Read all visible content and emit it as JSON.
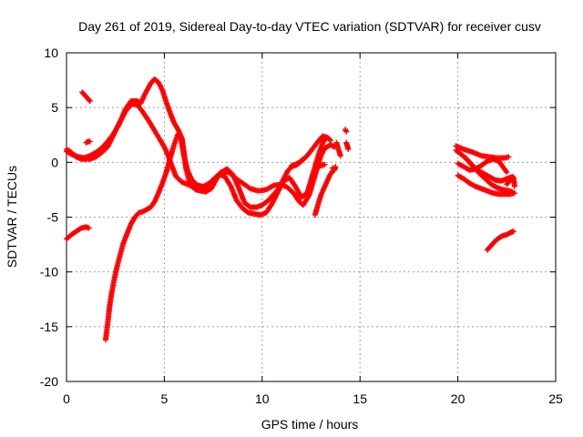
{
  "chart_data": {
    "type": "scatter",
    "title": "Day 261 of 2019, Sidereal Day-to-day VTEC variation (SDTVAR) for receiver cusv",
    "xlabel": "GPS time / hours",
    "ylabel": "SDTVAR / TECUs",
    "xlim": [
      0,
      25
    ],
    "ylim": [
      -20,
      10
    ],
    "xticks": [
      0,
      5,
      10,
      15,
      20,
      25
    ],
    "yticks": [
      -20,
      -15,
      -10,
      -5,
      0,
      5,
      10
    ],
    "grid": true,
    "marker": "+",
    "color": "#ff0000",
    "series": [
      {
        "points": [
          [
            0.0,
            -7.0
          ],
          [
            0.25,
            -6.6
          ],
          [
            0.5,
            -6.3
          ],
          [
            0.75,
            -6.0
          ],
          [
            1.0,
            -5.9
          ],
          [
            1.15,
            -6.0
          ]
        ]
      },
      {
        "points": [
          [
            0.0,
            1.2
          ],
          [
            0.25,
            0.9
          ],
          [
            0.5,
            0.5
          ],
          [
            0.75,
            0.3
          ],
          [
            1.0,
            0.3
          ],
          [
            1.2,
            0.3
          ],
          [
            1.5,
            0.5
          ],
          [
            1.8,
            0.9
          ],
          [
            2.1,
            1.4
          ],
          [
            2.4,
            2.5
          ],
          [
            2.7,
            3.6
          ],
          [
            3.0,
            4.6
          ],
          [
            3.3,
            5.3
          ],
          [
            3.6,
            5.3
          ],
          [
            3.9,
            4.6
          ],
          [
            4.2,
            3.8
          ],
          [
            4.5,
            2.9
          ],
          [
            4.8,
            2.0
          ],
          [
            5.0,
            1.4
          ],
          [
            5.2,
            0.6
          ],
          [
            5.4,
            -0.4
          ],
          [
            5.6,
            -1.3
          ],
          [
            5.9,
            -1.8
          ],
          [
            6.3,
            -2.1
          ],
          [
            6.7,
            -2.5
          ],
          [
            7.1,
            -2.7
          ],
          [
            7.4,
            -2.4
          ],
          [
            7.7,
            -1.4
          ],
          [
            8.0,
            -0.9
          ],
          [
            8.3,
            -0.9
          ],
          [
            8.6,
            -1.4
          ],
          [
            9.0,
            -1.9
          ],
          [
            9.4,
            -2.4
          ],
          [
            9.8,
            -2.6
          ],
          [
            10.2,
            -2.5
          ],
          [
            10.6,
            -2.1
          ],
          [
            11.0,
            -2.0
          ],
          [
            11.3,
            -2.3
          ],
          [
            11.6,
            -2.8
          ],
          [
            11.9,
            -3.6
          ],
          [
            12.1,
            -3.9
          ],
          [
            12.4,
            -3.0
          ],
          [
            12.6,
            -1.8
          ],
          [
            12.8,
            -0.6
          ],
          [
            13.0,
            0.6
          ],
          [
            13.2,
            1.3
          ],
          [
            13.5,
            1.6
          ],
          [
            13.7,
            1.4
          ]
        ]
      },
      {
        "points": [
          [
            2.0,
            -16.2
          ],
          [
            2.1,
            -14.8
          ],
          [
            2.2,
            -13.2
          ],
          [
            2.3,
            -12.0
          ],
          [
            2.45,
            -10.6
          ],
          [
            2.6,
            -9.4
          ],
          [
            2.75,
            -8.4
          ],
          [
            2.9,
            -7.4
          ],
          [
            3.1,
            -6.5
          ],
          [
            3.3,
            -5.6
          ],
          [
            3.5,
            -5.0
          ],
          [
            3.7,
            -4.6
          ],
          [
            3.9,
            -4.5
          ],
          [
            4.1,
            -4.3
          ],
          [
            4.3,
            -4.1
          ],
          [
            4.5,
            -3.6
          ],
          [
            4.7,
            -2.8
          ],
          [
            4.9,
            -1.9
          ],
          [
            5.1,
            -0.9
          ],
          [
            5.3,
            0.4
          ],
          [
            5.5,
            1.6
          ],
          [
            5.7,
            2.6
          ],
          [
            5.85,
            2.2
          ],
          [
            6.0,
            0.6
          ],
          [
            6.2,
            -0.8
          ],
          [
            6.4,
            -1.6
          ],
          [
            6.7,
            -2.1
          ],
          [
            7.0,
            -2.2
          ],
          [
            7.3,
            -1.9
          ],
          [
            7.6,
            -1.4
          ],
          [
            7.9,
            -0.9
          ],
          [
            8.2,
            -0.6
          ],
          [
            8.5,
            -1.1
          ],
          [
            8.8,
            -2.3
          ],
          [
            9.1,
            -3.7
          ],
          [
            9.4,
            -4.1
          ],
          [
            9.7,
            -4.1
          ],
          [
            10.0,
            -3.9
          ],
          [
            10.3,
            -3.5
          ],
          [
            10.6,
            -2.9
          ],
          [
            10.9,
            -2.3
          ],
          [
            11.1,
            -1.5
          ],
          [
            11.3,
            -0.8
          ],
          [
            11.5,
            -0.4
          ],
          [
            11.8,
            -0.2
          ],
          [
            12.0,
            0.1
          ],
          [
            12.3,
            0.6
          ],
          [
            12.6,
            1.3
          ],
          [
            12.9,
            2.0
          ],
          [
            13.1,
            2.4
          ],
          [
            13.4,
            2.2
          ]
        ]
      },
      {
        "points": [
          [
            0.0,
            1.0
          ],
          [
            0.3,
            0.7
          ],
          [
            0.6,
            0.5
          ],
          [
            0.9,
            0.4
          ],
          [
            1.2,
            0.6
          ],
          [
            1.5,
            0.9
          ],
          [
            1.8,
            1.3
          ],
          [
            2.1,
            1.9
          ],
          [
            2.4,
            2.6
          ],
          [
            2.7,
            3.5
          ],
          [
            3.0,
            4.8
          ],
          [
            3.3,
            5.6
          ],
          [
            3.6,
            5.6
          ],
          [
            3.8,
            5.4
          ],
          [
            4.0,
            6.2
          ],
          [
            4.3,
            7.2
          ],
          [
            4.5,
            7.6
          ],
          [
            4.7,
            7.3
          ],
          [
            4.9,
            6.6
          ],
          [
            5.1,
            5.5
          ],
          [
            5.3,
            4.5
          ],
          [
            5.5,
            3.6
          ],
          [
            5.7,
            3.0
          ],
          [
            5.9,
            2.2
          ],
          [
            6.0,
            1.0
          ],
          [
            6.1,
            -0.5
          ],
          [
            6.3,
            -1.9
          ],
          [
            6.6,
            -2.5
          ],
          [
            6.9,
            -2.6
          ],
          [
            7.2,
            -2.2
          ],
          [
            7.5,
            -1.6
          ],
          [
            7.8,
            -1.1
          ],
          [
            8.1,
            -1.3
          ],
          [
            8.4,
            -2.2
          ],
          [
            8.7,
            -3.5
          ],
          [
            9.0,
            -4.2
          ],
          [
            9.3,
            -4.6
          ],
          [
            9.6,
            -4.7
          ],
          [
            9.9,
            -4.8
          ],
          [
            10.2,
            -4.6
          ],
          [
            10.5,
            -3.8
          ],
          [
            10.8,
            -2.7
          ],
          [
            11.1,
            -1.7
          ],
          [
            11.4,
            -1.4
          ],
          [
            11.7,
            -2.2
          ],
          [
            12.0,
            -3.2
          ],
          [
            12.3,
            -2.8
          ],
          [
            12.5,
            -1.6
          ],
          [
            12.7,
            -0.4
          ],
          [
            12.9,
            0.8
          ],
          [
            13.1,
            1.8
          ],
          [
            13.3,
            2.3
          ],
          [
            13.5,
            2.0
          ]
        ]
      },
      {
        "points": [
          [
            12.7,
            -4.8
          ],
          [
            12.8,
            -4.2
          ],
          [
            12.9,
            -3.6
          ],
          [
            13.0,
            -3.0
          ],
          [
            13.15,
            -2.4
          ],
          [
            13.3,
            -1.8
          ],
          [
            13.45,
            -1.2
          ],
          [
            13.6,
            -0.8
          ]
        ]
      },
      {
        "points": [
          [
            0.8,
            6.4
          ],
          [
            0.9,
            6.2
          ],
          [
            1.0,
            6.0
          ],
          [
            1.1,
            5.8
          ],
          [
            1.2,
            5.6
          ]
        ]
      },
      {
        "points": [
          [
            1.0,
            1.8
          ],
          [
            1.1,
            1.9
          ],
          [
            1.2,
            1.9
          ]
        ]
      },
      {
        "points": [
          [
            11.5,
            -0.3
          ],
          [
            11.7,
            -0.2
          ],
          [
            11.9,
            0.0
          ],
          [
            12.1,
            0.3
          ]
        ]
      },
      {
        "points": [
          [
            12.8,
            -0.5
          ],
          [
            13.0,
            -0.3
          ],
          [
            13.2,
            -0.2
          ]
        ]
      },
      {
        "points": [
          [
            13.6,
            -0.5
          ],
          [
            13.7,
            -0.7
          ],
          [
            13.75,
            -0.4
          ]
        ]
      },
      {
        "points": [
          [
            13.8,
            1.8
          ],
          [
            13.9,
            1.2
          ],
          [
            14.0,
            0.6
          ]
        ]
      },
      {
        "points": [
          [
            14.25,
            3.0
          ],
          [
            14.3,
            2.8
          ]
        ]
      },
      {
        "points": [
          [
            14.3,
            1.8
          ],
          [
            14.35,
            1.5
          ],
          [
            14.4,
            1.2
          ]
        ]
      },
      {
        "points": [
          [
            19.9,
            1.5
          ],
          [
            20.3,
            1.2
          ],
          [
            20.8,
            0.9
          ],
          [
            21.2,
            0.6
          ],
          [
            21.6,
            0.5
          ],
          [
            22.0,
            0.4
          ],
          [
            22.4,
            0.4
          ],
          [
            22.6,
            0.5
          ]
        ]
      },
      {
        "points": [
          [
            19.9,
            1.1
          ],
          [
            20.2,
            0.7
          ],
          [
            20.5,
            0.2
          ],
          [
            20.8,
            -0.4
          ],
          [
            21.1,
            -1.0
          ],
          [
            21.4,
            -1.5
          ],
          [
            21.7,
            -2.0
          ],
          [
            22.0,
            -2.3
          ],
          [
            22.3,
            -2.5
          ],
          [
            22.6,
            -2.6
          ],
          [
            22.8,
            -2.7
          ]
        ]
      },
      {
        "points": [
          [
            20.0,
            -0.1
          ],
          [
            20.3,
            -0.4
          ],
          [
            20.6,
            -0.7
          ],
          [
            20.9,
            -0.6
          ],
          [
            21.2,
            -0.3
          ],
          [
            21.5,
            0.1
          ],
          [
            21.8,
            0.3
          ],
          [
            22.1,
            0.1
          ],
          [
            22.3,
            -0.4
          ],
          [
            22.5,
            -0.9
          ]
        ]
      },
      {
        "points": [
          [
            20.0,
            -1.2
          ],
          [
            20.3,
            -1.5
          ],
          [
            20.6,
            -1.9
          ],
          [
            20.9,
            -2.2
          ],
          [
            21.2,
            -2.4
          ],
          [
            21.5,
            -2.6
          ],
          [
            21.8,
            -2.8
          ],
          [
            22.1,
            -2.9
          ],
          [
            22.4,
            -2.9
          ],
          [
            22.7,
            -2.9
          ],
          [
            22.9,
            -2.8
          ]
        ]
      },
      {
        "points": [
          [
            20.4,
            0.4
          ],
          [
            20.7,
            -0.2
          ],
          [
            21.0,
            -0.7
          ],
          [
            21.3,
            -1.0
          ],
          [
            21.6,
            -1.3
          ],
          [
            21.9,
            -1.6
          ],
          [
            22.2,
            -1.7
          ],
          [
            22.5,
            -1.5
          ],
          [
            22.8,
            -1.3
          ]
        ]
      },
      {
        "points": [
          [
            21.5,
            -8.0
          ],
          [
            21.7,
            -7.6
          ],
          [
            21.9,
            -7.2
          ],
          [
            22.1,
            -6.9
          ],
          [
            22.3,
            -6.7
          ],
          [
            22.5,
            -6.6
          ],
          [
            22.7,
            -6.4
          ],
          [
            22.85,
            -6.3
          ]
        ]
      },
      {
        "points": [
          [
            22.5,
            -2.0
          ],
          [
            22.7,
            -1.6
          ],
          [
            22.85,
            -1.4
          ],
          [
            22.9,
            -2.2
          ]
        ]
      }
    ]
  }
}
